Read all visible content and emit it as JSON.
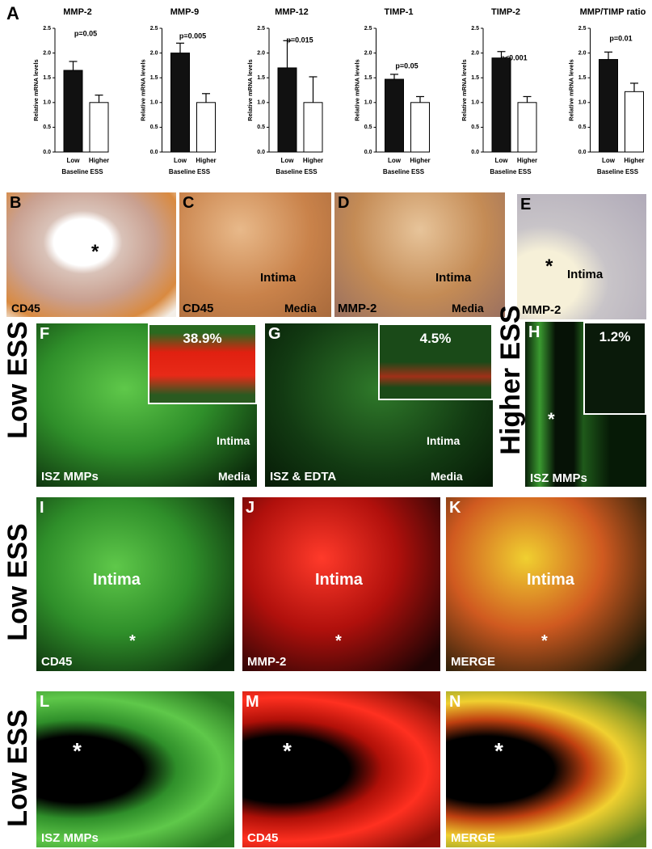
{
  "figure_label": "A",
  "chart_data": [
    {
      "type": "bar",
      "title": "MMP-2",
      "annotation": "p=0.05",
      "ylabel": "Relative mRNA levels",
      "xlabel": "Baseline ESS",
      "categories": [
        "Low",
        "Higher"
      ],
      "values": [
        1.65,
        1.0
      ],
      "errors": [
        0.18,
        0.15
      ],
      "colors": [
        "#111111",
        "#ffffff"
      ],
      "ylim": [
        0,
        2.5
      ],
      "yticks": [
        {
          "value": 0,
          "label": "0.0"
        },
        {
          "value": 0.5,
          "label": "0.5"
        },
        {
          "value": 1,
          "label": "1.0"
        },
        {
          "value": 1.5,
          "label": "1.5"
        },
        {
          "value": 2,
          "label": "2.0"
        },
        {
          "value": 2.5,
          "label": "2.5"
        }
      ]
    },
    {
      "type": "bar",
      "title": "MMP-9",
      "annotation": "p=0.005",
      "ylabel": "Relative mRNA levels",
      "xlabel": "Baseline ESS",
      "categories": [
        "Low",
        "Higher"
      ],
      "values": [
        2.0,
        1.0
      ],
      "errors": [
        0.2,
        0.18
      ],
      "colors": [
        "#111111",
        "#ffffff"
      ],
      "ylim": [
        0,
        2.5
      ],
      "yticks": [
        {
          "value": 0,
          "label": "0.0"
        },
        {
          "value": 0.5,
          "label": "0.5"
        },
        {
          "value": 1,
          "label": "1.0"
        },
        {
          "value": 1.5,
          "label": "1.5"
        },
        {
          "value": 2,
          "label": "2.0"
        },
        {
          "value": 2.5,
          "label": "2.5"
        }
      ]
    },
    {
      "type": "bar",
      "title": "MMP-12",
      "annotation": "p=0.015",
      "ylabel": "Relative mRNA levels",
      "xlabel": "Baseline ESS",
      "categories": [
        "Low",
        "Higher"
      ],
      "values": [
        1.7,
        1.0
      ],
      "errors": [
        0.55,
        0.52
      ],
      "colors": [
        "#111111",
        "#ffffff"
      ],
      "ylim": [
        0,
        2.5
      ],
      "yticks": [
        {
          "value": 0,
          "label": "0.0"
        },
        {
          "value": 0.5,
          "label": "0.5"
        },
        {
          "value": 1,
          "label": "1.0"
        },
        {
          "value": 1.5,
          "label": "1.5"
        },
        {
          "value": 2,
          "label": "2.0"
        },
        {
          "value": 2.5,
          "label": "2.5"
        }
      ]
    },
    {
      "type": "bar",
      "title": "TIMP-1",
      "annotation": "p=0.05",
      "ylabel": "Relative mRNA levels",
      "xlabel": "Baseline ESS",
      "categories": [
        "Low",
        "Higher"
      ],
      "values": [
        1.47,
        1.0
      ],
      "errors": [
        0.1,
        0.12
      ],
      "colors": [
        "#111111",
        "#ffffff"
      ],
      "ylim": [
        0,
        2.5
      ],
      "yticks": [
        {
          "value": 0,
          "label": "0.0"
        },
        {
          "value": 0.5,
          "label": "0.5"
        },
        {
          "value": 1,
          "label": "1.0"
        },
        {
          "value": 1.5,
          "label": "1.5"
        },
        {
          "value": 2,
          "label": "2.0"
        },
        {
          "value": 2.5,
          "label": "2.5"
        }
      ]
    },
    {
      "type": "bar",
      "title": "TIMP-2",
      "annotation": "p<0.001",
      "ylabel": "Relative mRNA levels",
      "xlabel": "Baseline ESS",
      "categories": [
        "Low",
        "Higher"
      ],
      "values": [
        1.9,
        1.0
      ],
      "errors": [
        0.13,
        0.12
      ],
      "colors": [
        "#111111",
        "#ffffff"
      ],
      "ylim": [
        0,
        2.5
      ],
      "yticks": [
        {
          "value": 0,
          "label": "0.0"
        },
        {
          "value": 0.5,
          "label": "0.5"
        },
        {
          "value": 1,
          "label": "1.0"
        },
        {
          "value": 1.5,
          "label": "1.5"
        },
        {
          "value": 2,
          "label": "2.0"
        },
        {
          "value": 2.5,
          "label": "2.5"
        }
      ]
    },
    {
      "type": "bar",
      "title": "MMP/TIMP ratio",
      "annotation": "p=0.01",
      "ylabel": "Relative mRNA levels",
      "xlabel": "Baseline ESS",
      "categories": [
        "Low",
        "Higher"
      ],
      "values": [
        1.87,
        1.22
      ],
      "errors": [
        0.15,
        0.17
      ],
      "colors": [
        "#111111",
        "#ffffff"
      ],
      "ylim": [
        0,
        2.5
      ],
      "yticks": [
        {
          "value": 0,
          "label": "0.0"
        },
        {
          "value": 0.5,
          "label": "0.5"
        },
        {
          "value": 1,
          "label": "1.0"
        },
        {
          "value": 1.5,
          "label": "1.5"
        },
        {
          "value": 2,
          "label": "2.0"
        },
        {
          "value": 2.5,
          "label": "2.5"
        }
      ]
    }
  ],
  "row_labels": [
    "Low ESS",
    "Higher ESS",
    "Low ESS",
    "Low ESS"
  ],
  "panels": [
    {
      "letter": "B",
      "texts": [
        "*",
        "CD45"
      ]
    },
    {
      "letter": "C",
      "texts": [
        "Intima",
        "CD45",
        "Media"
      ]
    },
    {
      "letter": "D",
      "texts": [
        "Intima",
        "MMP-2",
        "Media"
      ]
    },
    {
      "letter": "E",
      "texts": [
        "*",
        "Intima",
        "MMP-2"
      ]
    },
    {
      "letter": "F",
      "texts": [
        "38.9%",
        "Intima",
        "ISZ MMPs",
        "Media"
      ]
    },
    {
      "letter": "G",
      "texts": [
        "4.5%",
        "Intima",
        "ISZ & EDTA",
        "Media"
      ]
    },
    {
      "letter": "H",
      "texts": [
        "1.2%",
        "*",
        "ISZ MMPs"
      ]
    },
    {
      "letter": "I",
      "texts": [
        "Intima",
        "*",
        "CD45"
      ]
    },
    {
      "letter": "J",
      "texts": [
        "Intima",
        "*",
        "MMP-2"
      ]
    },
    {
      "letter": "K",
      "texts": [
        "Intima",
        "*",
        "MERGE"
      ]
    },
    {
      "letter": "L",
      "texts": [
        "*",
        "ISZ MMPs"
      ]
    },
    {
      "letter": "M",
      "texts": [
        "*",
        "CD45"
      ]
    },
    {
      "letter": "N",
      "texts": [
        "*",
        "MERGE"
      ]
    }
  ]
}
